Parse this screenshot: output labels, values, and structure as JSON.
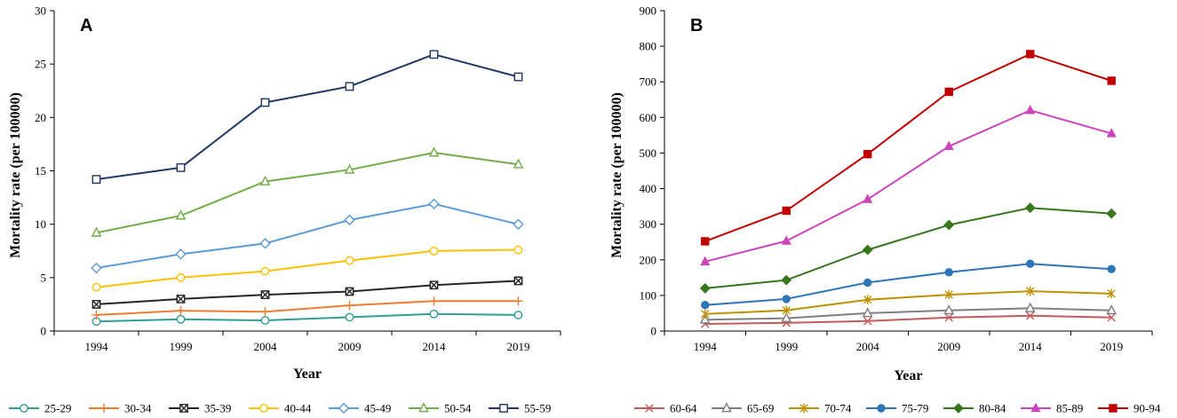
{
  "chart_data": [
    {
      "type": "line",
      "panel_label": "A",
      "xlabel": "Year",
      "ylabel": "Mortality rate (per 100000)",
      "x": [
        "1994",
        "1999",
        "2004",
        "2009",
        "2014",
        "2019"
      ],
      "ylim": [
        0,
        30
      ],
      "yticks": [
        "0",
        "5",
        "10",
        "15",
        "20",
        "25",
        "30"
      ],
      "grid": false,
      "legend_position": "bottom",
      "series": [
        {
          "name": "25-29",
          "color": "#2e9e96",
          "marker": "circle-open",
          "values": [
            0.9,
            1.1,
            1.0,
            1.3,
            1.6,
            1.5
          ]
        },
        {
          "name": "30-34",
          "color": "#ed7d31",
          "marker": "plus",
          "values": [
            1.5,
            1.9,
            1.8,
            2.4,
            2.8,
            2.8
          ]
        },
        {
          "name": "35-39",
          "color": "#262626",
          "marker": "square-x",
          "values": [
            2.5,
            3.0,
            3.4,
            3.7,
            4.3,
            4.7
          ]
        },
        {
          "name": "40-44",
          "color": "#ffc000",
          "marker": "circle-open",
          "values": [
            4.1,
            5.0,
            5.6,
            6.6,
            7.5,
            7.6
          ]
        },
        {
          "name": "45-49",
          "color": "#5b9bd5",
          "marker": "diamond-open",
          "values": [
            5.9,
            7.2,
            8.2,
            10.4,
            11.9,
            10.0
          ]
        },
        {
          "name": "50-54",
          "color": "#70ad47",
          "marker": "triangle-open",
          "values": [
            9.2,
            10.8,
            14.0,
            15.1,
            16.7,
            15.6
          ]
        },
        {
          "name": "55-59",
          "color": "#203864",
          "marker": "square-open",
          "values": [
            14.2,
            15.3,
            21.4,
            22.9,
            25.9,
            23.8
          ]
        }
      ]
    },
    {
      "type": "line",
      "panel_label": "B",
      "xlabel": "Year",
      "ylabel": "Mortality rate (per 100000)",
      "x": [
        "1994",
        "1999",
        "2004",
        "2009",
        "2014",
        "2019"
      ],
      "ylim": [
        0,
        900
      ],
      "yticks": [
        "0",
        "100",
        "200",
        "300",
        "400",
        "500",
        "600",
        "700",
        "800",
        "900"
      ],
      "grid": false,
      "legend_position": "bottom",
      "series": [
        {
          "name": "60-64",
          "color": "#c55a5a",
          "marker": "x",
          "values": [
            20,
            23,
            28,
            38,
            43,
            38
          ]
        },
        {
          "name": "65-69",
          "color": "#7f7f7f",
          "marker": "triangle-open",
          "values": [
            32,
            36,
            50,
            58,
            64,
            58
          ]
        },
        {
          "name": "70-74",
          "color": "#bf9000",
          "marker": "asterisk",
          "values": [
            48,
            58,
            88,
            102,
            112,
            105
          ]
        },
        {
          "name": "75-79",
          "color": "#2e75b6",
          "marker": "circle",
          "values": [
            73,
            90,
            136,
            165,
            189,
            174
          ]
        },
        {
          "name": "80-84",
          "color": "#38761d",
          "marker": "diamond",
          "values": [
            120,
            143,
            228,
            298,
            346,
            330
          ]
        },
        {
          "name": "85-89",
          "color": "#cc44bb",
          "marker": "triangle",
          "values": [
            195,
            253,
            370,
            519,
            620,
            555
          ]
        },
        {
          "name": "90-94",
          "color": "#c00000",
          "marker": "square",
          "values": [
            252,
            338,
            497,
            672,
            778,
            703
          ]
        }
      ]
    }
  ]
}
